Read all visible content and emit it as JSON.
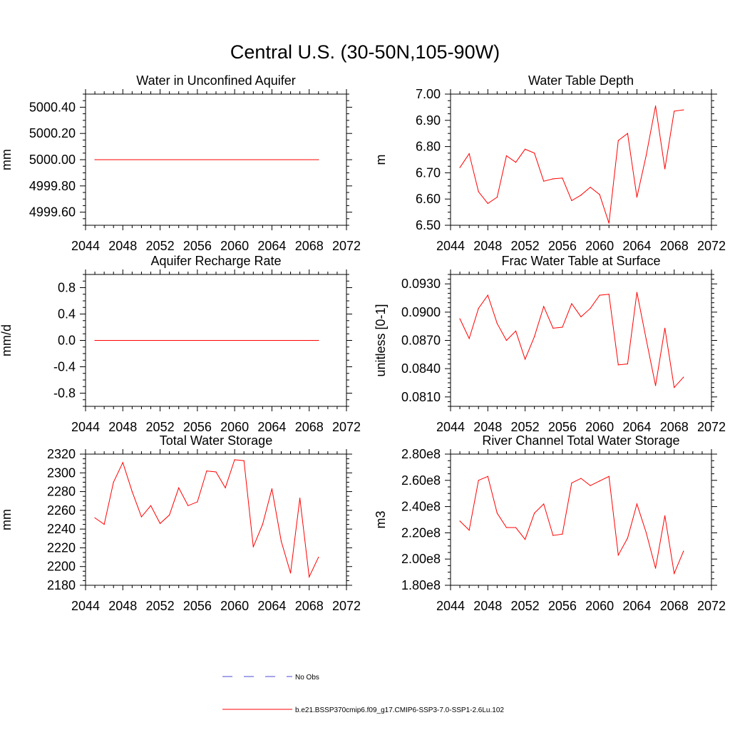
{
  "figure_title": "Central U.S. (30-50N,105-90W)",
  "legend": {
    "obs_label": "No Obs",
    "model_label": "b.e21.BSSP370cmip6.f09_g17.CMIP6-SSP3-7.0-SSP1-2.6Lu.102",
    "obs_color": "#4b4bd6",
    "model_color": "#ff0000"
  },
  "chart_data": [
    {
      "type": "line",
      "title": "Water in Unconfined Aquifer",
      "xlabel": "",
      "ylabel": "mm",
      "xlim": [
        2044,
        2072
      ],
      "ylim": [
        4999.5,
        5000.5
      ],
      "xticks": [
        2044,
        2048,
        2052,
        2056,
        2060,
        2064,
        2068,
        2072
      ],
      "xtick_labels": [
        "2044",
        "2048",
        "2052",
        "2056",
        "2060",
        "2064",
        "2068",
        "2072"
      ],
      "yticks": [
        4999.6,
        4999.8,
        5000.0,
        5000.2,
        5000.4
      ],
      "ytick_labels": [
        "4999.60",
        "4999.80",
        "5000.00",
        "5000.20",
        "5000.40"
      ],
      "ymticks": [
        4999.5,
        4999.55,
        4999.65,
        4999.7,
        4999.75,
        4999.85,
        4999.9,
        4999.95,
        5000.05,
        5000.1,
        5000.15,
        5000.25,
        5000.3,
        5000.35,
        5000.45,
        5000.5
      ],
      "x": [
        2045,
        2069
      ],
      "series": [
        {
          "values": [
            5000.0,
            5000.0
          ]
        }
      ]
    },
    {
      "type": "line",
      "title": "Water Table Depth",
      "xlabel": "",
      "ylabel": "m",
      "xlim": [
        2044,
        2072
      ],
      "ylim": [
        6.5,
        7.0
      ],
      "xticks": [
        2044,
        2048,
        2052,
        2056,
        2060,
        2064,
        2068,
        2072
      ],
      "xtick_labels": [
        "2044",
        "2048",
        "2052",
        "2056",
        "2060",
        "2064",
        "2068",
        "2072"
      ],
      "yticks": [
        6.5,
        6.6,
        6.7,
        6.8,
        6.9,
        7.0
      ],
      "ytick_labels": [
        "6.50",
        "6.60",
        "6.70",
        "6.80",
        "6.90",
        "7.00"
      ],
      "ymticks": [
        6.525,
        6.55,
        6.575,
        6.625,
        6.65,
        6.675,
        6.725,
        6.75,
        6.775,
        6.825,
        6.85,
        6.875,
        6.925,
        6.95,
        6.975
      ],
      "x": [
        2045,
        2046,
        2047,
        2048,
        2049,
        2050,
        2051,
        2052,
        2053,
        2054,
        2055,
        2056,
        2057,
        2058,
        2059,
        2060,
        2061,
        2062,
        2063,
        2064,
        2065,
        2066,
        2067,
        2068,
        2069
      ],
      "series": [
        {
          "values": [
            6.72,
            6.773,
            6.628,
            6.583,
            6.607,
            6.765,
            6.74,
            6.79,
            6.775,
            6.668,
            6.677,
            6.68,
            6.594,
            6.615,
            6.645,
            6.617,
            6.508,
            6.823,
            6.85,
            6.607,
            6.767,
            6.955,
            6.715,
            6.935,
            6.94
          ]
        }
      ]
    },
    {
      "type": "line",
      "title": "Aquifer Recharge Rate",
      "xlabel": "",
      "ylabel": "mm/d",
      "xlim": [
        2044,
        2072
      ],
      "ylim": [
        -1.0,
        1.0
      ],
      "xticks": [
        2044,
        2048,
        2052,
        2056,
        2060,
        2064,
        2068,
        2072
      ],
      "xtick_labels": [
        "2044",
        "2048",
        "2052",
        "2056",
        "2060",
        "2064",
        "2068",
        "2072"
      ],
      "yticks": [
        -0.8,
        -0.4,
        0.0,
        0.4,
        0.8
      ],
      "ytick_labels": [
        "-0.8",
        "-0.4",
        "0.0",
        "0.4",
        "0.8"
      ],
      "ymticks": [
        -1.0,
        -0.9,
        -0.7,
        -0.6,
        -0.5,
        -0.3,
        -0.2,
        -0.1,
        0.1,
        0.2,
        0.3,
        0.5,
        0.6,
        0.7,
        0.9,
        1.0
      ],
      "x": [
        2045,
        2069
      ],
      "series": [
        {
          "values": [
            0.0,
            0.0
          ]
        }
      ]
    },
    {
      "type": "line",
      "title": "Frac Water Table at Surface",
      "xlabel": "",
      "ylabel": "unitless [0-1]",
      "xlim": [
        2044,
        2072
      ],
      "ylim": [
        0.08,
        0.094
      ],
      "xticks": [
        2044,
        2048,
        2052,
        2056,
        2060,
        2064,
        2068,
        2072
      ],
      "xtick_labels": [
        "2044",
        "2048",
        "2052",
        "2056",
        "2060",
        "2064",
        "2068",
        "2072"
      ],
      "yticks": [
        0.081,
        0.084,
        0.087,
        0.09,
        0.093
      ],
      "ytick_labels": [
        "0.0810",
        "0.0840",
        "0.0870",
        "0.0900",
        "0.0930"
      ],
      "ymticks": [
        0.08,
        0.0805,
        0.0815,
        0.082,
        0.0825,
        0.083,
        0.0835,
        0.0845,
        0.085,
        0.0855,
        0.086,
        0.0865,
        0.0875,
        0.088,
        0.0885,
        0.089,
        0.0895,
        0.0905,
        0.091,
        0.0915,
        0.092,
        0.0925,
        0.0935,
        0.094
      ],
      "x": [
        2045,
        2046,
        2047,
        2048,
        2049,
        2050,
        2051,
        2052,
        2053,
        2054,
        2055,
        2056,
        2057,
        2058,
        2059,
        2060,
        2061,
        2062,
        2063,
        2064,
        2065,
        2066,
        2067,
        2068,
        2069
      ],
      "series": [
        {
          "values": [
            0.0893,
            0.0872,
            0.0904,
            0.0918,
            0.0888,
            0.087,
            0.088,
            0.085,
            0.0874,
            0.0906,
            0.0883,
            0.0884,
            0.0909,
            0.0895,
            0.0904,
            0.0918,
            0.0919,
            0.0844,
            0.0845,
            0.0921,
            0.0871,
            0.0822,
            0.0883,
            0.082,
            0.0831
          ]
        }
      ]
    },
    {
      "type": "line",
      "title": "Total Water Storage",
      "xlabel": "",
      "ylabel": "mm",
      "xlim": [
        2044,
        2072
      ],
      "ylim": [
        2180,
        2320
      ],
      "xticks": [
        2044,
        2048,
        2052,
        2056,
        2060,
        2064,
        2068,
        2072
      ],
      "xtick_labels": [
        "2044",
        "2048",
        "2052",
        "2056",
        "2060",
        "2064",
        "2068",
        "2072"
      ],
      "yticks": [
        2180,
        2200,
        2220,
        2240,
        2260,
        2280,
        2300,
        2320
      ],
      "ytick_labels": [
        "2180",
        "2200",
        "2220",
        "2240",
        "2260",
        "2280",
        "2300",
        "2320"
      ],
      "ymticks": [
        2185,
        2190,
        2195,
        2205,
        2210,
        2215,
        2225,
        2230,
        2235,
        2245,
        2250,
        2255,
        2265,
        2270,
        2275,
        2285,
        2290,
        2295,
        2305,
        2310,
        2315
      ],
      "x": [
        2045,
        2046,
        2047,
        2048,
        2049,
        2050,
        2051,
        2052,
        2053,
        2054,
        2055,
        2056,
        2057,
        2058,
        2059,
        2060,
        2061,
        2062,
        2063,
        2064,
        2065,
        2066,
        2067,
        2068,
        2069
      ],
      "series": [
        {
          "values": [
            2252,
            2245,
            2290,
            2311,
            2280,
            2253,
            2265,
            2246,
            2255,
            2284,
            2265,
            2269,
            2302,
            2301,
            2284,
            2314,
            2313,
            2221,
            2245,
            2283,
            2227,
            2193,
            2273,
            2189,
            2210
          ]
        }
      ]
    },
    {
      "type": "line",
      "title": "River Channel Total Water Storage",
      "xlabel": "",
      "ylabel": "m3",
      "xlim": [
        2044,
        2072
      ],
      "ylim": [
        180000000.0,
        280000000.0
      ],
      "xticks": [
        2044,
        2048,
        2052,
        2056,
        2060,
        2064,
        2068,
        2072
      ],
      "xtick_labels": [
        "2044",
        "2048",
        "2052",
        "2056",
        "2060",
        "2064",
        "2068",
        "2072"
      ],
      "yticks": [
        180000000.0,
        200000000.0,
        220000000.0,
        240000000.0,
        260000000.0,
        280000000.0
      ],
      "ytick_labels": [
        "1.80e8",
        "2.00e8",
        "2.20e8",
        "2.40e8",
        "2.60e8",
        "2.80e8"
      ],
      "ymticks": [
        185000000.0,
        190000000.0,
        195000000.0,
        205000000.0,
        210000000.0,
        215000000.0,
        225000000.0,
        230000000.0,
        235000000.0,
        245000000.0,
        250000000.0,
        255000000.0,
        265000000.0,
        270000000.0,
        275000000.0
      ],
      "x": [
        2045,
        2046,
        2047,
        2048,
        2049,
        2050,
        2051,
        2052,
        2053,
        2054,
        2055,
        2056,
        2057,
        2058,
        2059,
        2060,
        2061,
        2062,
        2063,
        2064,
        2065,
        2066,
        2067,
        2068,
        2069
      ],
      "series": [
        {
          "values": [
            229000000.0,
            222000000.0,
            260000000.0,
            263000000.0,
            235000000.0,
            224000000.0,
            224000000.0,
            215000000.0,
            235000000.0,
            242000000.0,
            218000000.0,
            219000000.0,
            258000000.0,
            261500000.0,
            256000000.0,
            259500000.0,
            263000000.0,
            203000000.0,
            216000000.0,
            242000000.0,
            220000000.0,
            193000000.0,
            233000000.0,
            189000000.0,
            206000000.0
          ]
        }
      ]
    }
  ]
}
